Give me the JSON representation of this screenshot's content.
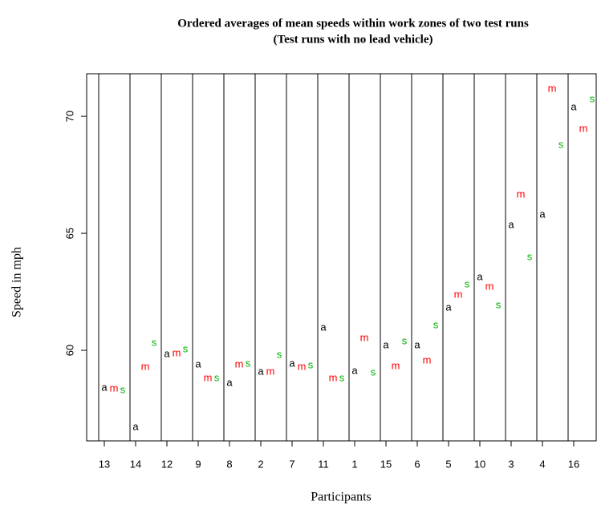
{
  "chart_data": {
    "type": "point_letters",
    "title": "Ordered averages of mean speeds within work zones of two test runs",
    "subtitle": "(Test runs with no lead vehicle)",
    "x_label": "Participants",
    "y_label": "Speed in mph",
    "categories": [
      "13",
      "14",
      "12",
      "9",
      "8",
      "2",
      "7",
      "11",
      "1",
      "15",
      "6",
      "5",
      "10",
      "3",
      "4",
      "16"
    ],
    "series": [
      {
        "name": "a",
        "color": "#000000",
        "values": [
          58.39,
          56.71,
          59.83,
          59.38,
          58.6,
          59.08,
          59.42,
          60.96,
          59.11,
          60.21,
          60.21,
          61.82,
          63.12,
          65.34,
          65.79,
          70.38
        ]
      },
      {
        "name": "m",
        "color": "#ff0000",
        "values": [
          58.36,
          59.28,
          59.86,
          58.8,
          59.38,
          59.08,
          59.28,
          58.8,
          60.51,
          59.32,
          59.55,
          62.36,
          62.71,
          66.64,
          71.16,
          69.45
        ]
      },
      {
        "name": "s",
        "color": "#00b000",
        "values": [
          58.29,
          60.31,
          60.03,
          58.8,
          59.42,
          59.79,
          59.35,
          58.8,
          59.04,
          60.38,
          61.06,
          62.81,
          61.92,
          63.97,
          68.77,
          70.72
        ]
      }
    ],
    "ylim": [
      56.13,
      71.82
    ],
    "yticks": [
      60,
      65,
      70
    ]
  }
}
